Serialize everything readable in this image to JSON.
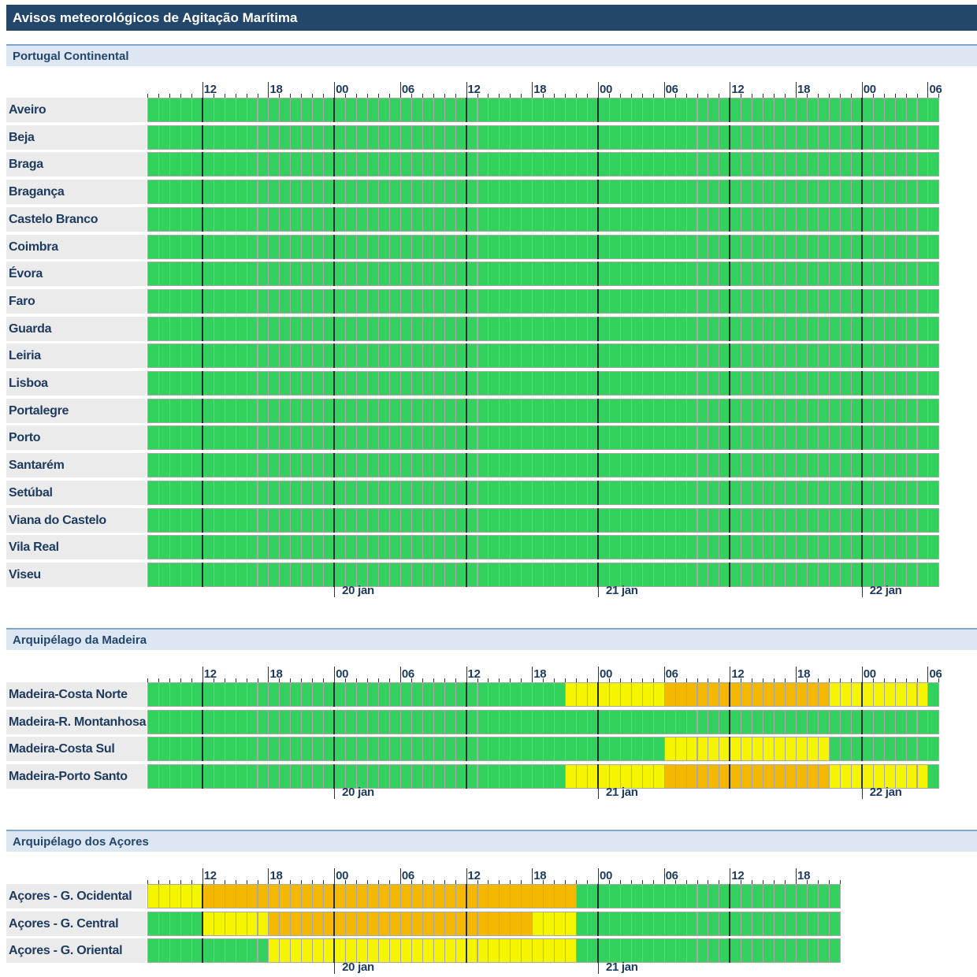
{
  "page_title": "Avisos meteorológicos de Agitação Marítima",
  "colors": {
    "green": "#33d15d",
    "yellow": "#f5f500",
    "orange": "#f5b800",
    "title_bg": "#23476a"
  },
  "legend_levels": [
    "green",
    "yellow",
    "orange"
  ],
  "sections": [
    {
      "id": "continental",
      "title": "Portugal Continental",
      "hour_ticks": [
        "12",
        "18",
        "00",
        "06",
        "12",
        "18",
        "00",
        "06",
        "12",
        "18",
        "00",
        "06"
      ],
      "date_labels": [
        "20 jan",
        "21 jan",
        "22 jan"
      ],
      "regions": [
        {
          "name": "Aveiro",
          "levels": "green:72"
        },
        {
          "name": "Beja",
          "levels": "green:72"
        },
        {
          "name": "Braga",
          "levels": "green:72"
        },
        {
          "name": "Bragança",
          "levels": "green:72"
        },
        {
          "name": "Castelo Branco",
          "levels": "green:72"
        },
        {
          "name": "Coimbra",
          "levels": "green:72"
        },
        {
          "name": "Évora",
          "levels": "green:72"
        },
        {
          "name": "Faro",
          "levels": "green:72"
        },
        {
          "name": "Guarda",
          "levels": "green:72"
        },
        {
          "name": "Leiria",
          "levels": "green:72"
        },
        {
          "name": "Lisboa",
          "levels": "green:72"
        },
        {
          "name": "Portalegre",
          "levels": "green:72"
        },
        {
          "name": "Porto",
          "levels": "green:72"
        },
        {
          "name": "Santarém",
          "levels": "green:72"
        },
        {
          "name": "Setúbal",
          "levels": "green:72"
        },
        {
          "name": "Viana do Castelo",
          "levels": "green:72"
        },
        {
          "name": "Vila Real",
          "levels": "green:72"
        },
        {
          "name": "Viseu",
          "levels": "green:72"
        }
      ]
    },
    {
      "id": "madeira",
      "title": "Arquipélago da Madeira",
      "hour_ticks": [
        "12",
        "18",
        "00",
        "06",
        "12",
        "18",
        "00",
        "06",
        "12",
        "18",
        "00",
        "06"
      ],
      "date_labels": [
        "20 jan",
        "21 jan",
        "22 jan"
      ],
      "regions": [
        {
          "name": "Madeira-Costa Norte",
          "levels": "green:38,yellow:9,orange:15,yellow:9,green:1"
        },
        {
          "name": "Madeira-R. Montanhosas",
          "levels": "green:72"
        },
        {
          "name": "Madeira-Costa Sul",
          "levels": "green:47,yellow:15,green:10"
        },
        {
          "name": "Madeira-Porto Santo",
          "levels": "green:38,yellow:9,orange:15,yellow:9,green:1"
        }
      ]
    },
    {
      "id": "acores",
      "title": "Arquipélago dos Açores",
      "hour_ticks": [
        "12",
        "18",
        "00",
        "06",
        "12",
        "18",
        "00",
        "06",
        "12",
        "18"
      ],
      "date_labels": [
        "20 jan",
        "21 jan"
      ],
      "regions": [
        {
          "name": "Açores - G. Ocidental",
          "levels": "yellow:5,orange:34,green:24"
        },
        {
          "name": "Açores - G. Central",
          "levels": "green:5,yellow:6,orange:24,yellow:4,green:24"
        },
        {
          "name": "Açores - G. Oriental",
          "levels": "green:11,yellow:28,green:24"
        }
      ]
    }
  ]
}
